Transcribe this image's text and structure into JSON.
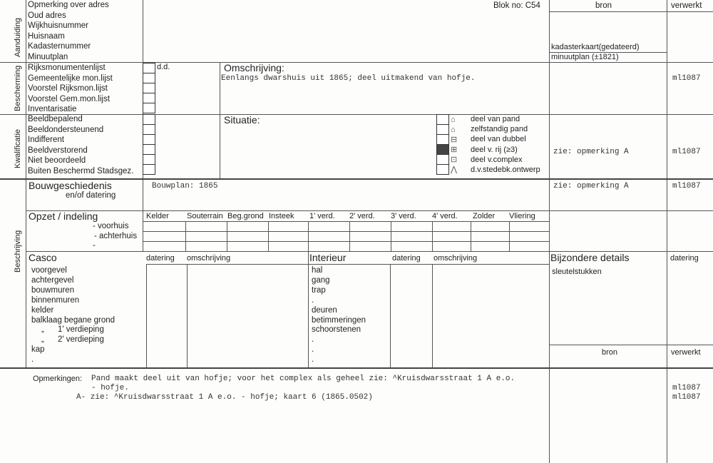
{
  "header": {
    "blok": "Blok no: C54",
    "bron": "bron",
    "verwerkt": "verwerkt"
  },
  "aanduiding": {
    "section": "Aanduiding",
    "items": [
      "Opmerking over adres",
      "Oud adres",
      "Wijkhuisnummer",
      "Huisnaam",
      "Kadasternummer",
      "Minuutplan"
    ],
    "bron": [
      "kadasterkaart(gedateerd)",
      "minuutplan (±1821)"
    ]
  },
  "bescherming": {
    "section": "Bescherming",
    "items": [
      "Rijksmonumentenlijst",
      "Gemeentelijke mon.lijst",
      "Voorstel Rijksmon.lijst",
      "Voorstel Gem.mon.lijst",
      "Inventarisatie"
    ],
    "dd": "d.d.",
    "omschrijving_label": "Omschrijving:",
    "omschrijving": "Eenlangs dwarshuis uit 1865; deel uitmakend van hofje.",
    "verwerkt": "ml1087"
  },
  "kwalificatie": {
    "section": "Kwalificatie",
    "items": [
      "Beeldbepalend",
      "Beeldondersteunend",
      "Indifferent",
      "Beeldverstorend",
      "Niet beoordeeld",
      "Buiten Beschermd Stadsgez."
    ],
    "situatie_label": "Situatie:",
    "situatie_options": [
      "deel van pand",
      "zelfstandig pand",
      "deel van dubbel",
      "deel v. rij (≥3)",
      "deel v.complex",
      "d.v.stedebk.ontwerp"
    ],
    "situatie_checked_index": 3,
    "bron": "zie: opmerking A",
    "verwerkt": "ml1087"
  },
  "beschrijving": {
    "section": "Beschrijving",
    "bouwgeschiedenis": {
      "label": "Bouwgeschiedenis",
      "sublabel": "en/of datering",
      "value": "Bouwplan: 1865",
      "bron": "zie: opmerking A",
      "verwerkt": "ml1087"
    },
    "opzet": {
      "label": "Opzet / indeling",
      "rows": [
        "- voorhuis",
        "- achterhuis",
        "-"
      ],
      "columns": [
        "Kelder",
        "Souterrain",
        "Beg.grond",
        "Insteek",
        "1' verd.",
        "2' verd.",
        "3' verd.",
        "4' verd.",
        "Zolder",
        "Vliering"
      ]
    },
    "casco": {
      "label": "Casco",
      "datering": "datering",
      "omschrijving": "omschrijving",
      "items": [
        "voorgevel",
        "achtergevel",
        "bouwmuren",
        "binnenmuren",
        "kelder",
        "balklaag begane grond",
        "„      1' verdieping",
        "„      2' verdieping",
        "kap",
        "."
      ]
    },
    "interieur": {
      "label": "Interieur",
      "datering": "datering",
      "omschrijving": "omschrijving",
      "items": [
        "hal",
        "gang",
        "trap",
        ".",
        "deuren",
        "betimmeringen",
        "schoorstenen",
        ".",
        ".",
        "."
      ]
    },
    "bijzondere": {
      "label": "Bijzondere details",
      "datering": "datering",
      "items": [
        "sleutelstukken"
      ],
      "bron": "bron",
      "verwerkt": "verwerkt"
    }
  },
  "opmerkingen": {
    "label": "Opmerkingen:",
    "line1": "Pand maakt deel uit van hofje; voor het complex als geheel zie: ^Kruisdwarsstraat 1 A e.o.",
    "line2": "- hofje.",
    "line3": "A- zie: ^Kruisdwarsstraat 1 A e.o. - hofje; kaart 6 (1865.0502)",
    "verwerkt": [
      "ml1087",
      "ml1087"
    ]
  }
}
